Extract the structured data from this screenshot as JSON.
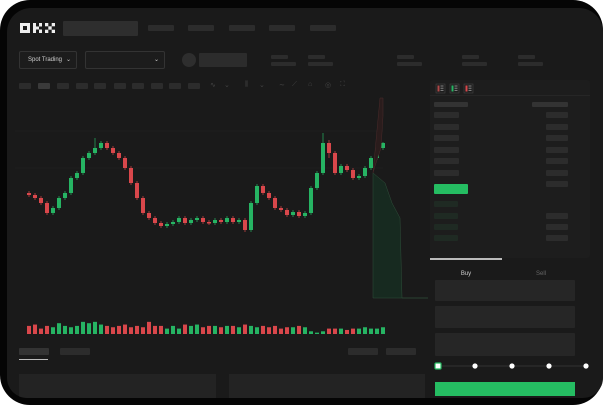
{
  "header": {
    "logo": "OKX"
  },
  "market_bar": {
    "mode_select": "Spot Trading",
    "pair_select": ""
  },
  "toolbar_icons": [
    "indicator-icon",
    "chevron-down-icon",
    "candle-type-icon",
    "chevron-down-icon",
    "line-icon",
    "ruler-icon",
    "camera-icon",
    "settings-icon",
    "fullscreen-icon"
  ],
  "order_book": {
    "view_icons": [
      "book-both-icon",
      "book-bids-icon",
      "book-asks-icon"
    ]
  },
  "trade_panel": {
    "tabs": [
      {
        "label": "Buy",
        "active": true
      },
      {
        "label": "Sell",
        "active": false
      }
    ],
    "slider_percent": 0,
    "slider_marks": [
      0,
      25,
      50,
      75,
      100
    ]
  },
  "colors": {
    "up": "#26b463",
    "down": "#d9474b",
    "accent": "#25bd62",
    "background": "#1a1a1a"
  },
  "chart_data": {
    "type": "candlestick",
    "candles": [
      [
        115,
        117,
        111,
        113
      ],
      [
        113,
        115,
        108,
        110
      ],
      [
        110,
        112,
        103,
        105
      ],
      [
        105,
        107,
        93,
        95
      ],
      [
        95,
        102,
        93,
        100
      ],
      [
        100,
        112,
        98,
        110
      ],
      [
        110,
        117,
        108,
        115
      ],
      [
        115,
        132,
        113,
        130
      ],
      [
        130,
        137,
        128,
        135
      ],
      [
        135,
        152,
        133,
        150
      ],
      [
        150,
        157,
        148,
        155
      ],
      [
        155,
        170,
        153,
        160
      ],
      [
        160,
        167,
        158,
        165
      ],
      [
        165,
        167,
        158,
        160
      ],
      [
        160,
        162,
        153,
        155
      ],
      [
        155,
        157,
        148,
        150
      ],
      [
        150,
        152,
        138,
        140
      ],
      [
        140,
        142,
        123,
        125
      ],
      [
        125,
        127,
        108,
        110
      ],
      [
        110,
        112,
        93,
        95
      ],
      [
        95,
        97,
        88,
        90
      ],
      [
        90,
        92,
        83,
        85
      ],
      [
        85,
        87,
        80,
        82
      ],
      [
        82,
        86,
        80,
        84
      ],
      [
        84,
        88,
        82,
        86
      ],
      [
        86,
        92,
        84,
        90
      ],
      [
        90,
        92,
        83,
        85
      ],
      [
        85,
        90,
        83,
        88
      ],
      [
        88,
        92,
        86,
        90
      ],
      [
        90,
        92,
        84,
        86
      ],
      [
        86,
        88,
        83,
        85
      ],
      [
        85,
        90,
        83,
        88
      ],
      [
        88,
        90,
        84,
        86
      ],
      [
        86,
        92,
        84,
        90
      ],
      [
        90,
        92,
        84,
        86
      ],
      [
        86,
        90,
        84,
        88
      ],
      [
        88,
        90,
        76,
        78
      ],
      [
        78,
        107,
        76,
        105
      ],
      [
        105,
        124,
        103,
        122
      ],
      [
        122,
        124,
        113,
        115
      ],
      [
        115,
        117,
        108,
        110
      ],
      [
        110,
        112,
        98,
        100
      ],
      [
        100,
        102,
        96,
        98
      ],
      [
        98,
        100,
        91,
        93
      ],
      [
        93,
        98,
        91,
        96
      ],
      [
        96,
        98,
        90,
        92
      ],
      [
        92,
        97,
        90,
        95
      ],
      [
        95,
        122,
        93,
        120
      ],
      [
        120,
        137,
        118,
        135
      ],
      [
        135,
        175,
        133,
        165
      ],
      [
        165,
        168,
        150,
        155
      ],
      [
        155,
        157,
        133,
        135
      ],
      [
        135,
        144,
        133,
        142
      ],
      [
        142,
        144,
        136,
        138
      ],
      [
        138,
        140,
        128,
        130
      ],
      [
        130,
        134,
        128,
        132
      ],
      [
        132,
        142,
        130,
        140
      ],
      [
        140,
        152,
        138,
        150
      ],
      [
        150,
        166,
        148,
        160
      ],
      [
        160,
        166,
        158,
        165
      ]
    ],
    "volume": [
      6,
      7,
      4,
      6,
      5,
      8,
      6,
      5,
      6,
      9,
      8,
      9,
      7,
      6,
      5,
      6,
      7,
      5,
      6,
      5,
      9,
      6,
      6,
      4,
      6,
      4,
      7,
      6,
      7,
      5,
      6,
      6,
      5,
      6,
      6,
      5,
      7,
      6,
      5,
      6,
      5,
      6,
      4,
      5,
      5,
      6,
      5,
      2,
      1,
      2,
      4,
      4,
      4,
      3,
      4,
      4,
      5,
      4,
      4,
      5
    ],
    "xlabel": "",
    "ylabel": ""
  }
}
